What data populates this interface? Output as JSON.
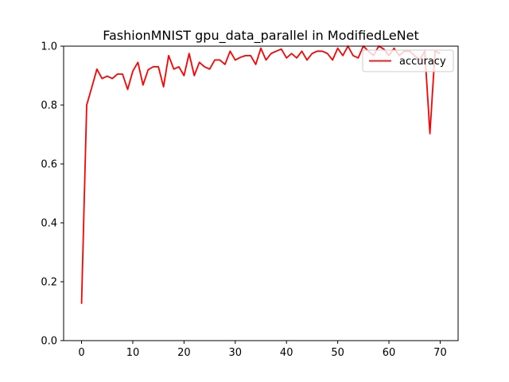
{
  "chart_data": {
    "type": "line",
    "title": "FashionMNIST gpu_data_parallel in ModifiedLeNet",
    "xlabel": "",
    "ylabel": "",
    "xlim": [
      -3.5,
      73.5
    ],
    "ylim": [
      0.0,
      1.0
    ],
    "x_ticks": [
      0,
      10,
      20,
      30,
      40,
      50,
      60,
      70
    ],
    "x_tick_labels": [
      "0",
      "10",
      "20",
      "30",
      "40",
      "50",
      "60",
      "70"
    ],
    "y_ticks": [
      0.0,
      0.2,
      0.4,
      0.6,
      0.8,
      1.0
    ],
    "y_tick_labels": [
      "0.0",
      "0.2",
      "0.4",
      "0.6",
      "0.8",
      "1.0"
    ],
    "grid": false,
    "legend": {
      "placement": "top-right"
    },
    "series": [
      {
        "name": "accuracy",
        "color": "#ff0000",
        "x": [
          0,
          1,
          2,
          3,
          4,
          5,
          6,
          7,
          8,
          9,
          10,
          11,
          12,
          13,
          14,
          15,
          16,
          17,
          18,
          19,
          20,
          21,
          22,
          23,
          24,
          25,
          26,
          27,
          28,
          29,
          30,
          31,
          32,
          33,
          34,
          35,
          36,
          37,
          38,
          39,
          40,
          41,
          42,
          43,
          44,
          45,
          46,
          47,
          48,
          49,
          50,
          51,
          52,
          53,
          54,
          55,
          56,
          57,
          58,
          59,
          60,
          61,
          62,
          63,
          64,
          65,
          66,
          67,
          68,
          69,
          70
        ],
        "values": [
          0.125,
          0.8,
          0.86,
          0.922,
          0.89,
          0.898,
          0.89,
          0.905,
          0.905,
          0.853,
          0.915,
          0.945,
          0.868,
          0.92,
          0.93,
          0.93,
          0.862,
          0.968,
          0.922,
          0.93,
          0.9,
          0.975,
          0.9,
          0.945,
          0.93,
          0.922,
          0.953,
          0.953,
          0.938,
          0.983,
          0.953,
          0.962,
          0.968,
          0.968,
          0.938,
          0.993,
          0.953,
          0.975,
          0.983,
          0.99,
          0.96,
          0.975,
          0.96,
          0.983,
          0.953,
          0.975,
          0.983,
          0.983,
          0.975,
          0.953,
          0.993,
          0.968,
          1.0,
          0.968,
          0.96,
          1.0,
          0.983,
          0.968,
          1.0,
          0.99,
          0.968,
          0.993,
          0.968,
          0.983,
          0.983,
          0.968,
          0.953,
          0.983,
          0.703,
          0.983,
          0.975
        ]
      }
    ]
  }
}
